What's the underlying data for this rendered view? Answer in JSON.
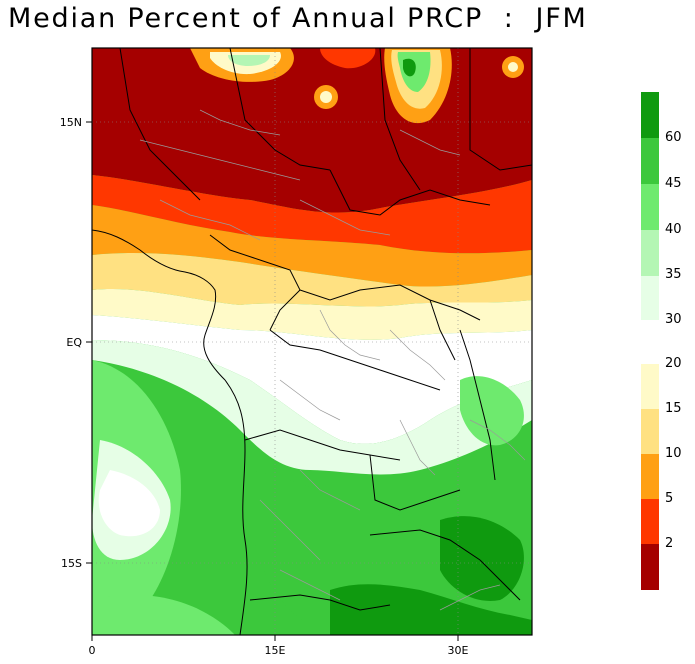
{
  "title": "Median Percent of Annual PRCP  :  JFM",
  "map": {
    "lat_labels": [
      "15N",
      "EQ",
      "15S"
    ],
    "lon_labels": [
      "0",
      "15E",
      "30E"
    ],
    "lat_range": [
      -21,
      20.5
    ],
    "lon_range": [
      0,
      35
    ]
  },
  "colorbar": {
    "labels": [
      "60",
      "45",
      "40",
      "35",
      "30",
      "20",
      "15",
      "10",
      "5",
      "2"
    ],
    "colors": {
      "c60": "#0f9a0f",
      "c45": "#3cc83c",
      "c40": "#6eea6e",
      "c35": "#b4f6b4",
      "c30": "#e6fee6",
      "c20": "#fffac8",
      "c15": "#ffe182",
      "c10": "#ffa014",
      "c5": "#ff3700",
      "c2": "#a50000"
    }
  }
}
